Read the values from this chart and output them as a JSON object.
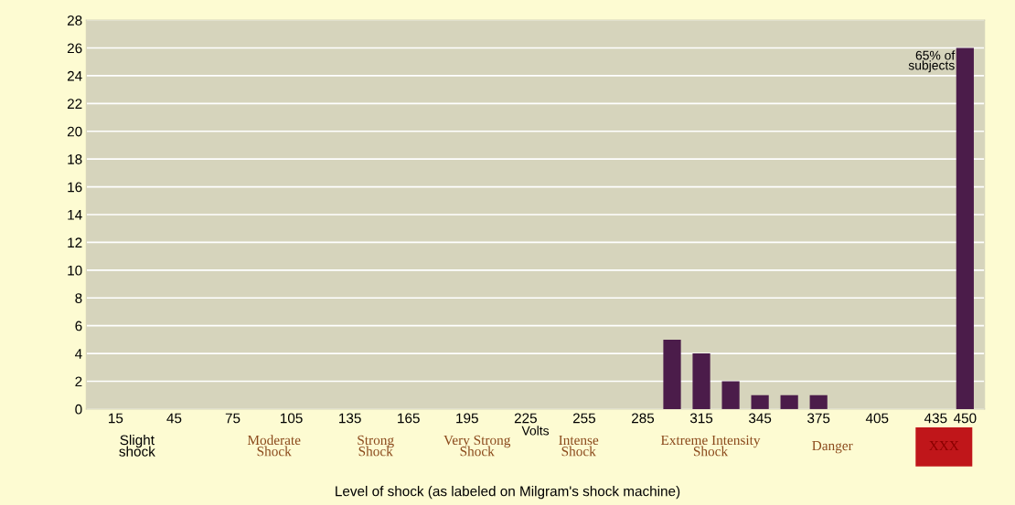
{
  "chart_data": {
    "type": "bar",
    "xlabel": "Volts",
    "x": [
      300,
      315,
      330,
      345,
      360,
      375,
      450
    ],
    "values": [
      5,
      4,
      2,
      1,
      1,
      1,
      26
    ],
    "color": "#4b1c4a",
    "xlim": [
      0,
      460
    ],
    "xticks": [
      15,
      45,
      75,
      105,
      135,
      165,
      195,
      225,
      255,
      285,
      315,
      345,
      375,
      405,
      435,
      450
    ],
    "ylim": [
      0,
      28
    ],
    "yticks": [
      0,
      2,
      4,
      6,
      8,
      10,
      12,
      14,
      16,
      18,
      20,
      22,
      24,
      26,
      28
    ],
    "grid": "y",
    "annotations": [
      {
        "text": "65% of\nsubjects",
        "x": 450,
        "y": 26
      },
      "Slight\nshock",
      "Moderate\nShock",
      "Strong\nShock",
      "Very Strong\nShock",
      "Intense\nShock",
      "Extreme Intensity\nShock",
      "Danger",
      "XXX",
      "Level of shock (as labeled on Milgram's shock machine)"
    ]
  }
}
